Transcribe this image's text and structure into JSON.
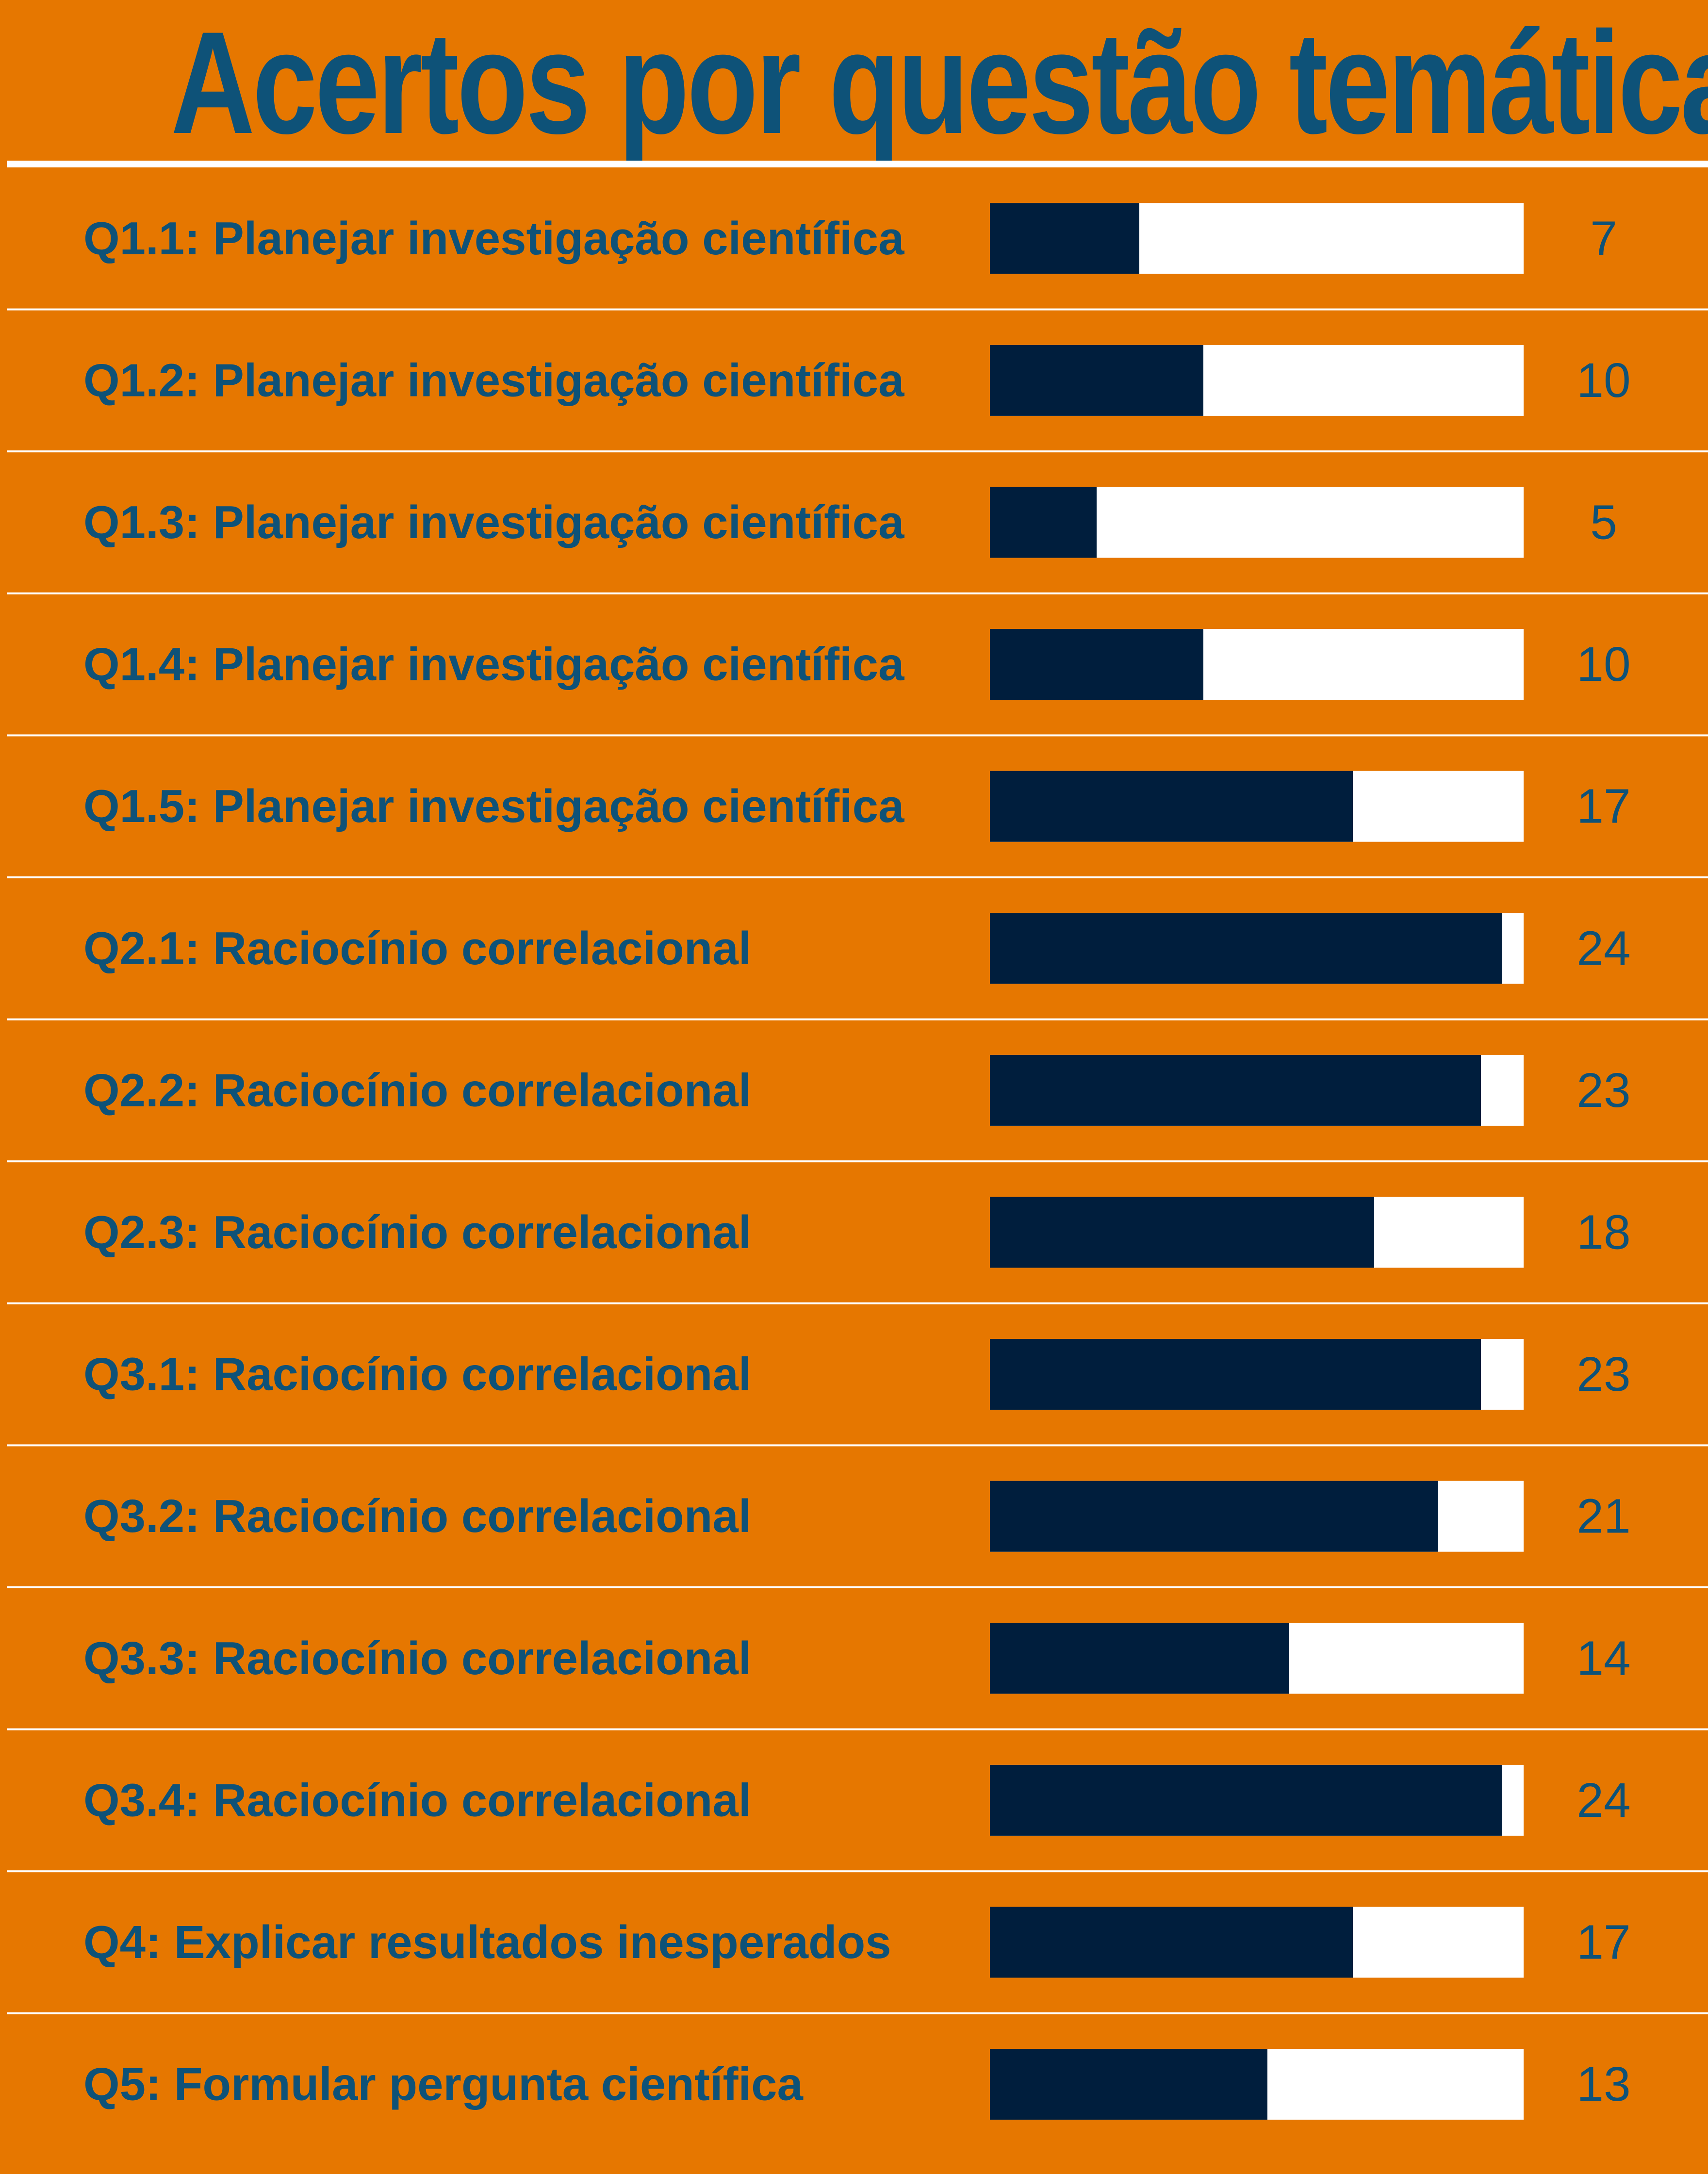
{
  "chart_data": {
    "type": "bar",
    "orientation": "horizontal",
    "title": "Acertos por questão temática",
    "categories": [
      "Q1.1: Planejar investigação científica",
      "Q1.2: Planejar investigação científica",
      "Q1.3: Planejar investigação científica",
      "Q1.4: Planejar investigação científica",
      "Q1.5: Planejar investigação científica",
      "Q2.1: Raciocínio correlacional",
      "Q2.2: Raciocínio correlacional",
      "Q2.3: Raciocínio correlacional",
      "Q3.1: Raciocínio correlacional",
      "Q3.2: Raciocínio correlacional",
      "Q3.3: Raciocínio correlacional",
      "Q3.4: Raciocínio correlacional",
      "Q4: Explicar resultados inesperados",
      "Q5: Formular pergunta científica"
    ],
    "values": [
      7,
      10,
      5,
      10,
      17,
      24,
      23,
      18,
      23,
      21,
      14,
      24,
      17,
      13
    ],
    "xlim": [
      0,
      25
    ],
    "data_labels": true,
    "grid": false,
    "legend": false,
    "colors": {
      "background": "#E67700",
      "bar": "#001E3D",
      "track": "#FFFFFF",
      "text": "#0E5278",
      "divider": "#FFFFFF"
    }
  }
}
